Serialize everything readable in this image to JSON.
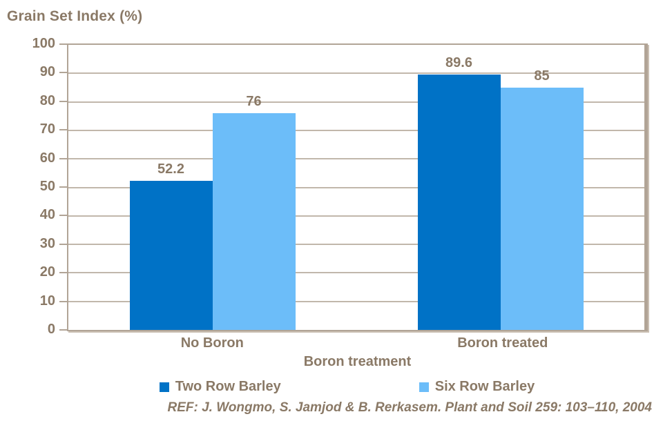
{
  "colors": {
    "series1": "#0072C6",
    "series2": "#6CBDF9",
    "text": "#8A7966",
    "gridline": "#C1B7AB",
    "axis": "#B1A496"
  },
  "chart_data": {
    "type": "bar",
    "title": "Grain Set Index (%)",
    "categories": [
      "No Boron",
      "Boron treated"
    ],
    "series": [
      {
        "name": "Two Row Barley",
        "color": "#0072C6",
        "values": [
          52.2,
          89.6
        ]
      },
      {
        "name": "Six Row Barley",
        "color": "#6CBDF9",
        "values": [
          76,
          85
        ]
      }
    ],
    "xlabel": "Boron treatment",
    "ylabel": "Grain Set Index (%)",
    "ylim": [
      0,
      100
    ],
    "ytick_step": 10,
    "grid": true,
    "legend_position": "bottom",
    "value_labels": [
      "52.2",
      "76",
      "89.6",
      "85"
    ]
  },
  "footer": {
    "reference": "REF: J. Wongmo, S. Jamjod & B. Rerkasem. Plant and Soil 259: 103–110, 2004"
  }
}
